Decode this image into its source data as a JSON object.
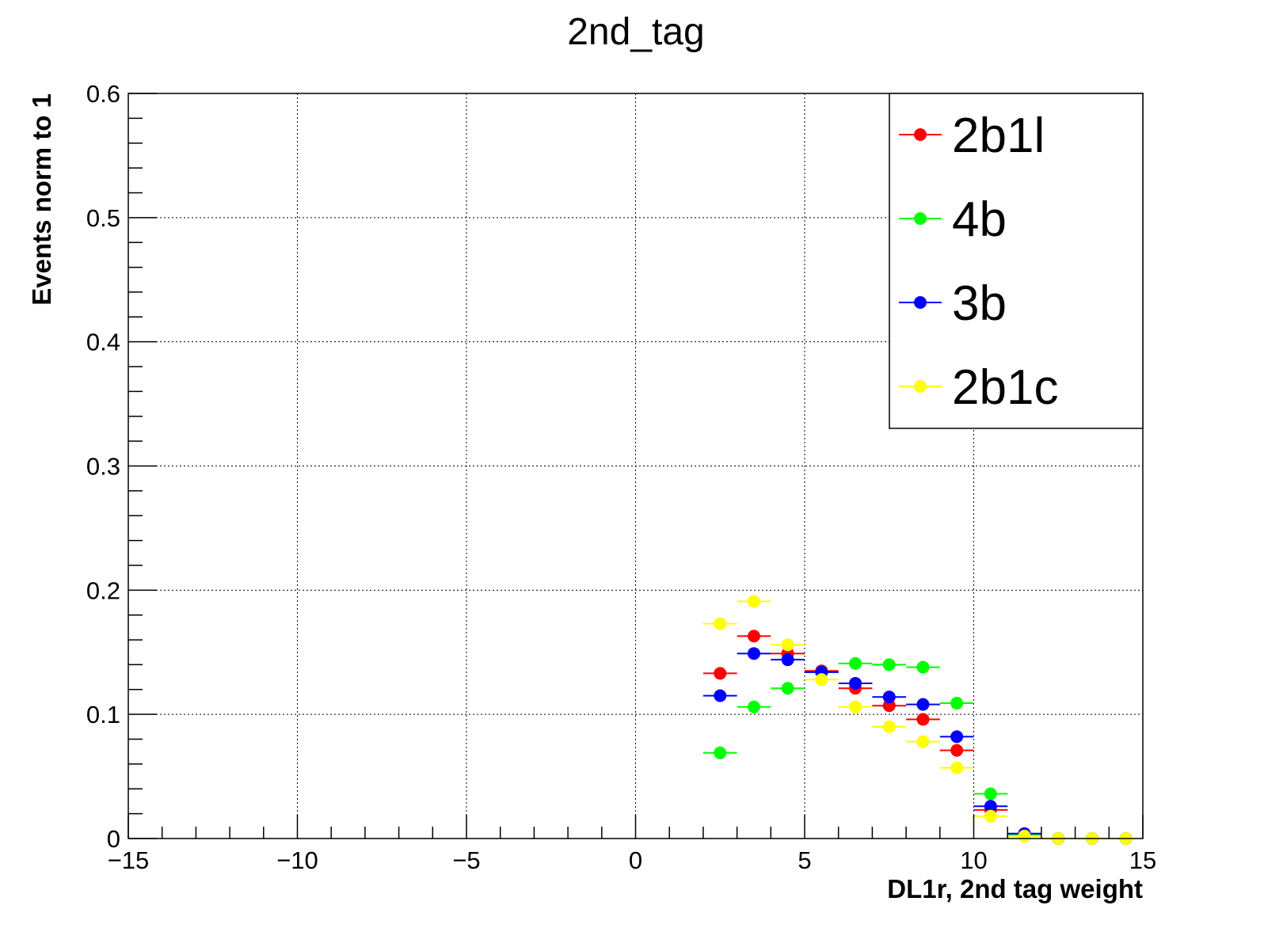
{
  "chart_data": {
    "type": "scatter",
    "title": "2nd_tag",
    "xlabel": "DL1r, 2nd tag weight",
    "ylabel": "Events norm to 1",
    "xlim": [
      -15,
      15
    ],
    "ylim": [
      0,
      0.6
    ],
    "x_ticks": [
      -15,
      -10,
      -5,
      0,
      5,
      10,
      15
    ],
    "x_tick_labels": [
      "−15",
      "−10",
      "−5",
      "0",
      "5",
      "10",
      "15"
    ],
    "y_ticks": [
      0,
      0.1,
      0.2,
      0.3,
      0.4,
      0.5,
      0.6
    ],
    "y_tick_labels": [
      "0",
      "0.1",
      "0.2",
      "0.3",
      "0.4",
      "0.5",
      "0.6"
    ],
    "grid": true,
    "legend_position": "top-right",
    "bin_width": 1,
    "x": [
      2.5,
      3.5,
      4.5,
      5.5,
      6.5,
      7.5,
      8.5,
      9.5,
      10.5,
      11.5,
      12.5,
      13.5,
      14.5
    ],
    "series": [
      {
        "name": "2b1l",
        "color": "#ff0000",
        "values": [
          0.133,
          0.163,
          0.149,
          0.135,
          0.121,
          0.107,
          0.096,
          0.071,
          0.023,
          0.003,
          0.0,
          0.0,
          0.0
        ]
      },
      {
        "name": "4b",
        "color": "#00ff00",
        "values": [
          0.069,
          0.106,
          0.121,
          0.134,
          0.141,
          0.14,
          0.138,
          0.109,
          0.036,
          0.003,
          0.0,
          0.0,
          0.0
        ]
      },
      {
        "name": "3b",
        "color": "#0000ff",
        "values": [
          0.115,
          0.149,
          0.144,
          0.134,
          0.125,
          0.114,
          0.108,
          0.082,
          0.026,
          0.004,
          0.0,
          0.0,
          0.0
        ]
      },
      {
        "name": "2b1c",
        "color": "#ffff00",
        "values": [
          0.173,
          0.191,
          0.156,
          0.128,
          0.106,
          0.09,
          0.078,
          0.057,
          0.018,
          0.002,
          0.0,
          0.0,
          0.0
        ]
      }
    ]
  }
}
